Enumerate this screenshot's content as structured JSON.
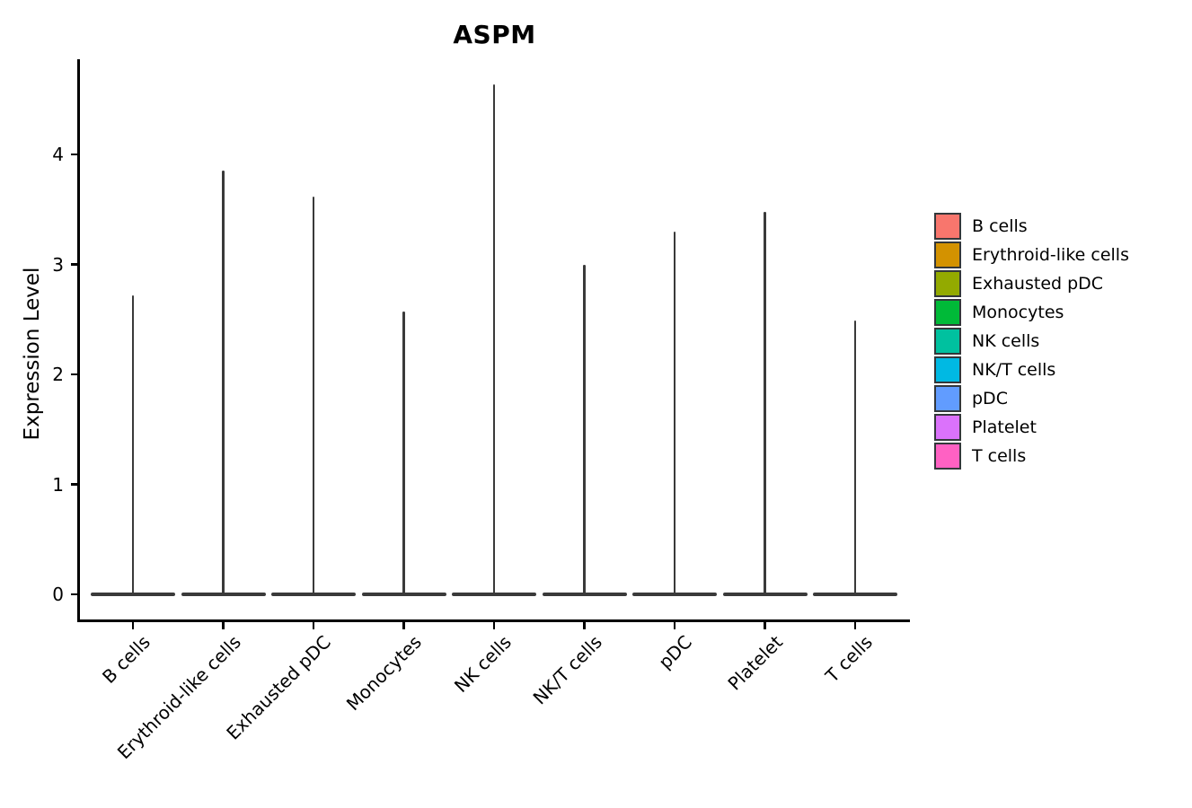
{
  "chart_data": {
    "type": "violin",
    "title": "ASPM",
    "ylabel": "Expression Level",
    "xlabel": "",
    "yticks": [
      0,
      1,
      2,
      3,
      4
    ],
    "ylim": [
      -0.2,
      4.9
    ],
    "grid": false,
    "legend_position": "right",
    "categories": [
      "B cells",
      "Erythroid-like cells",
      "Exhausted pDC",
      "Monocytes",
      "NK cells",
      "NK/T cells",
      "pDC",
      "Platelet",
      "T cells"
    ],
    "series": [
      {
        "name": "B cells",
        "color": "#F8766D",
        "peak_expression": 2.72,
        "min_expression": 0
      },
      {
        "name": "Erythroid-like cells",
        "color": "#D39200",
        "peak_expression": 3.85,
        "min_expression": 0
      },
      {
        "name": "Exhausted pDC",
        "color": "#93AA00",
        "peak_expression": 3.62,
        "min_expression": 0
      },
      {
        "name": "Monocytes",
        "color": "#00BA38",
        "peak_expression": 2.57,
        "min_expression": 0
      },
      {
        "name": "NK cells",
        "color": "#00C19F",
        "peak_expression": 4.64,
        "min_expression": 0
      },
      {
        "name": "NK/T cells",
        "color": "#00B9E3",
        "peak_expression": 3.0,
        "min_expression": 0
      },
      {
        "name": "pDC",
        "color": "#619CFF",
        "peak_expression": 3.3,
        "min_expression": 0
      },
      {
        "name": "Platelet",
        "color": "#DB72FB",
        "peak_expression": 3.48,
        "min_expression": 0
      },
      {
        "name": "T cells",
        "color": "#FF61C3",
        "peak_expression": 2.49,
        "min_expression": 0
      }
    ],
    "violin_outline_color": "#3A3A3A",
    "axis_color": "#000000",
    "background": "#FFFFFF"
  }
}
